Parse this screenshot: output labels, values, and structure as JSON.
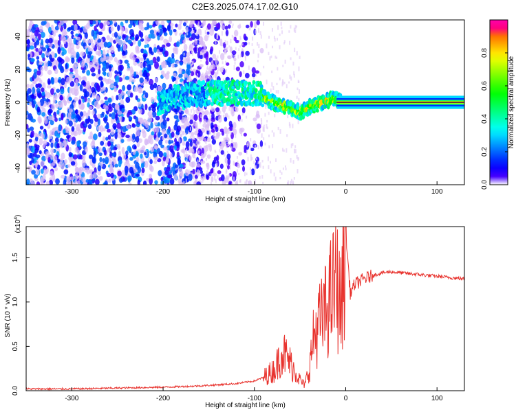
{
  "title": "C2E3.2025.074.17.02.G10",
  "chart_data": [
    {
      "type": "heatmap",
      "xlabel": "Height of straight line (km)",
      "ylabel": "Frequency (Hz)",
      "xlim": [
        -350,
        130
      ],
      "ylim": [
        -50,
        50
      ],
      "xticks": [
        -300,
        -200,
        -100,
        0,
        100
      ],
      "yticks": [
        -40,
        -20,
        0,
        20,
        40
      ],
      "colorbar": {
        "label": "Normalized spectral amplitude",
        "range": [
          0.0,
          1.0
        ],
        "ticks": [
          0.0,
          0.2,
          0.4,
          0.6,
          0.8
        ],
        "tick_labels": [
          "0.0",
          "0.2",
          "0.4",
          "0.6",
          "0.8"
        ]
      },
      "features": {
        "noise_region_x": [
          -350,
          -170
        ],
        "main_trace": [
          {
            "x": -200,
            "y": 2
          },
          {
            "x": -160,
            "y": 5
          },
          {
            "x": -120,
            "y": 6
          },
          {
            "x": -95,
            "y": 5
          },
          {
            "x": -80,
            "y": 0
          },
          {
            "x": -60,
            "y": -4
          },
          {
            "x": -50,
            "y": -6
          },
          {
            "x": -40,
            "y": -3
          },
          {
            "x": -25,
            "y": 0
          },
          {
            "x": -15,
            "y": 2
          },
          {
            "x": -5,
            "y": 1
          },
          {
            "x": 0,
            "y": 0
          },
          {
            "x": 130,
            "y": 0
          }
        ],
        "steady_band_x": [
          -10,
          130
        ]
      }
    },
    {
      "type": "line",
      "xlabel": "Height of straight line (km)",
      "ylabel": "SNR (10 * v/v)",
      "y_multiplier": "(x10",
      "y_multiplier_exp": "4",
      "y_multiplier_close": ")",
      "xlim": [
        -350,
        130
      ],
      "ylim": [
        0,
        1.85
      ],
      "xticks": [
        -300,
        -200,
        -100,
        0,
        100
      ],
      "yticks": [
        0.0,
        0.5,
        1.0,
        1.5
      ],
      "ytick_labels": [
        "0.0",
        "0.5",
        "1.0",
        "1.5"
      ],
      "color": "#e8322d",
      "series": [
        {
          "x": [
            -350,
            -300,
            -250,
            -200,
            -170,
            -150,
            -120,
            -100,
            -90,
            -80,
            -75,
            -70,
            -65,
            -60,
            -55,
            -50,
            -45,
            -40,
            -35,
            -30,
            -25,
            -20,
            -15,
            -10,
            -5,
            0,
            5,
            10,
            20,
            30,
            40,
            50,
            60,
            70,
            80,
            90,
            100,
            110,
            120,
            130
          ],
          "y": [
            0.02,
            0.02,
            0.03,
            0.04,
            0.05,
            0.06,
            0.08,
            0.11,
            0.15,
            0.22,
            0.3,
            0.45,
            0.38,
            0.3,
            0.22,
            0.12,
            0.06,
            0.25,
            0.6,
            0.75,
            0.8,
            0.95,
            1.1,
            1.25,
            0.9,
            1.8,
            1.1,
            1.2,
            1.26,
            1.3,
            1.33,
            1.34,
            1.33,
            1.32,
            1.31,
            1.3,
            1.29,
            1.28,
            1.27,
            1.26
          ]
        }
      ]
    }
  ]
}
